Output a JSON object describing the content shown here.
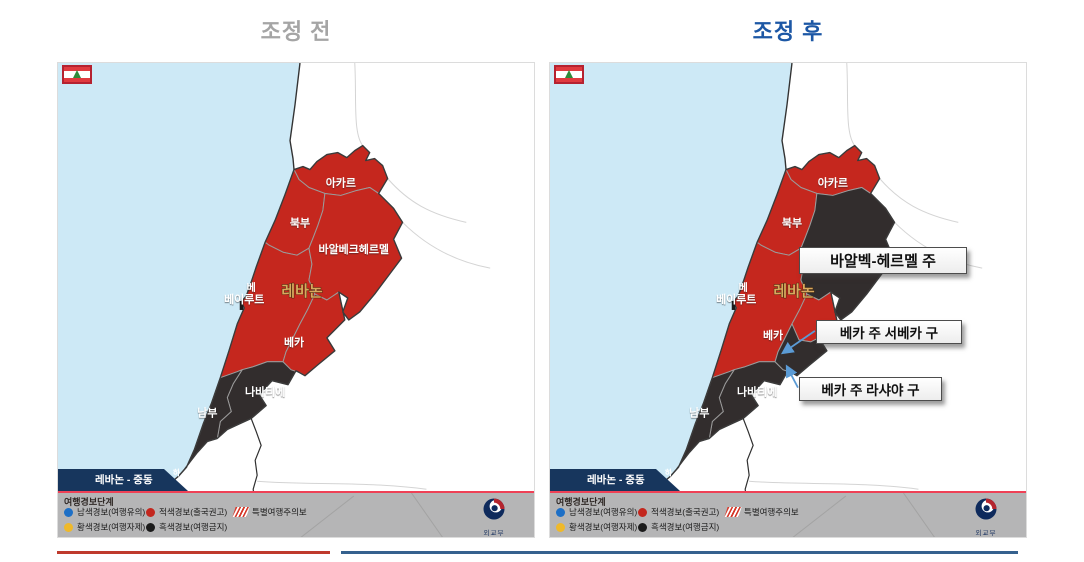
{
  "panels": [
    {
      "id": "before",
      "title": "조정 전"
    },
    {
      "id": "after",
      "title": "조정 후"
    }
  ],
  "map": {
    "region_labels": {
      "akkar": "아카르",
      "north": "북부",
      "baalbek": "바알베크헤르멜",
      "lebanon": "레바논",
      "beirut_short": "베",
      "beirut": "베이루트",
      "beqaa": "베카",
      "nabatieh": "나바티에",
      "south": "남부",
      "coast_city": "하"
    },
    "banner_text": "레바논 - 중동",
    "legend": {
      "title": "여행경보단계",
      "items": [
        {
          "id": "blue",
          "label": "남색경보(여행유의)",
          "color": "#1d6fc6",
          "shape": "dot",
          "row": 1
        },
        {
          "id": "red",
          "label": "적색경보(출국권고)",
          "color": "#c3271e",
          "shape": "dot",
          "row": 1
        },
        {
          "id": "special",
          "label": "특별여행주의보",
          "color": "#d6392b",
          "shape": "hatch",
          "row": 1
        },
        {
          "id": "yellow",
          "label": "황색경보(여행자제)",
          "color": "#efb92a",
          "shape": "dot",
          "row": 2
        },
        {
          "id": "black",
          "label": "흑색경보(여행금지)",
          "color": "#1b1b1b",
          "shape": "dot",
          "row": 2
        }
      ]
    },
    "logo_label": "외교부"
  },
  "after_callouts": [
    {
      "id": "baalbek-hermel",
      "label": "바알벡-헤르멜 주"
    },
    {
      "id": "west-beqaa",
      "label": "베카 주 서베카 구"
    },
    {
      "id": "rashaya",
      "label": "베카 주 라샤야 구"
    }
  ],
  "colors": {
    "red_region": "#c5271e",
    "black_region": "#322d2d",
    "sea": "#cde9f6",
    "region_border": "#9b9b9b",
    "country_border": "#3a3a3a",
    "banner_navy": "#17365d",
    "band_gray": "#b5b5b6",
    "band_top_line": "#ef4156",
    "callout_arrow": "#5b9bd5",
    "title_before": "#a5a5a5",
    "title_after": "#1c57a5",
    "footer_red": "#bf3a2d",
    "footer_blue": "#35618e"
  }
}
